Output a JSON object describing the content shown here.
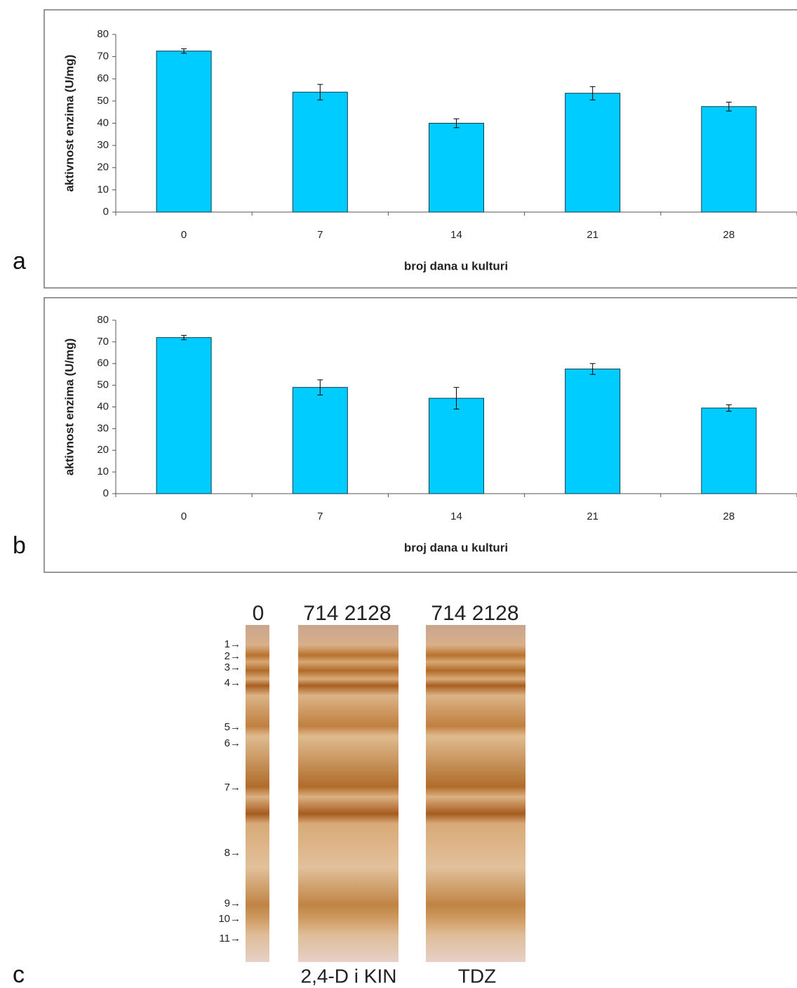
{
  "chart_data": [
    {
      "type": "bar",
      "panel": "a",
      "ylabel": "aktivnost enzima (U/mg)",
      "xlabel": "broj dana u kulturi",
      "categories": [
        "0",
        "7",
        "14",
        "21",
        "28"
      ],
      "values": [
        72.5,
        54,
        40,
        53.5,
        47.5
      ],
      "errors": [
        1,
        3.5,
        2,
        3,
        2
      ],
      "color": "#00ccff",
      "ylim": [
        0,
        80
      ],
      "yticks": [
        0,
        10,
        20,
        30,
        40,
        50,
        60,
        70,
        80
      ]
    },
    {
      "type": "bar",
      "panel": "b",
      "ylabel": "aktivnost enzima (U/mg)",
      "xlabel": "broj dana u kulturi",
      "categories": [
        "0",
        "7",
        "14",
        "21",
        "28"
      ],
      "values": [
        72,
        49,
        44,
        57.5,
        39.5
      ],
      "errors": [
        1,
        3.5,
        5,
        2.5,
        1.5
      ],
      "color": "#00ccff",
      "ylim": [
        0,
        80
      ],
      "yticks": [
        0,
        10,
        20,
        30,
        40,
        50,
        60,
        70,
        80
      ]
    }
  ],
  "gel": {
    "panel": "c",
    "lane_labels": [
      "0",
      "714 2128",
      "714 2128"
    ],
    "band_labels": [
      "1→",
      "2→",
      "3→",
      "4→",
      "5→",
      "6→",
      "7→",
      "8→",
      "9→",
      "10→",
      "11→"
    ],
    "treatments": [
      "2,4-D i KIN",
      "TDZ"
    ]
  }
}
